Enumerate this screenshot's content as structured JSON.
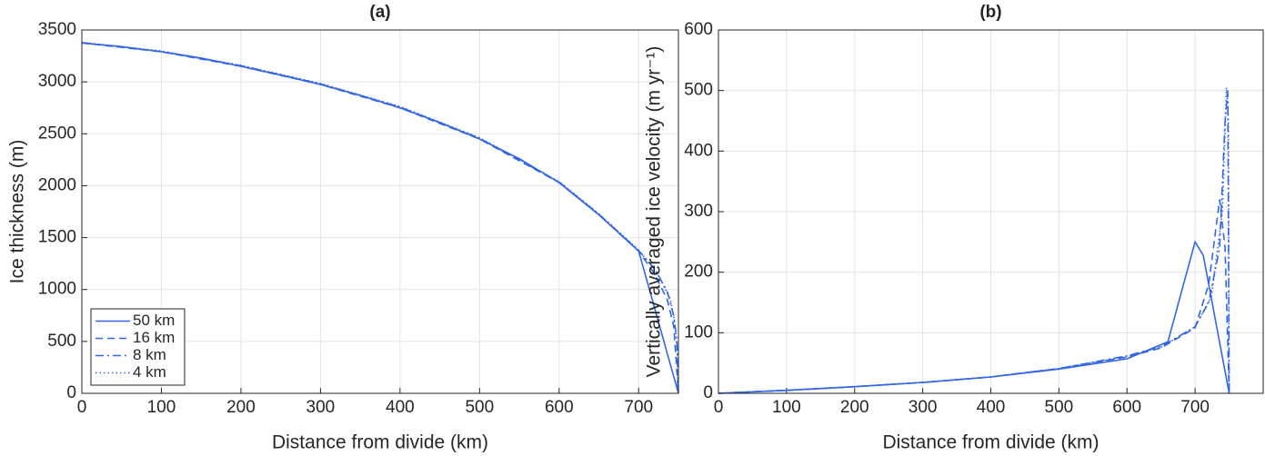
{
  "chart_data": [
    {
      "type": "line",
      "title": "(a)",
      "xlabel": "Distance from divide (km)",
      "ylabel": "Ice thickness (m)",
      "xlim": [
        0,
        750
      ],
      "xticks": [
        0,
        100,
        200,
        300,
        400,
        500,
        600,
        700
      ],
      "ylim": [
        0,
        3500
      ],
      "yticks": [
        0,
        500,
        1000,
        1500,
        2000,
        2500,
        3000,
        3500
      ],
      "grid": true,
      "legend": "lower left",
      "series": [
        {
          "name": "50 km",
          "color": "#3366e6",
          "style": "solid",
          "x": [
            0,
            50,
            100,
            150,
            200,
            250,
            300,
            350,
            400,
            450,
            500,
            550,
            600,
            650,
            700,
            750
          ],
          "values": [
            3375,
            3340,
            3290,
            3230,
            3150,
            3065,
            2975,
            2870,
            2750,
            2610,
            2450,
            2260,
            2030,
            1720,
            1370,
            0
          ]
        },
        {
          "name": "16 km",
          "color": "#3366e6",
          "style": "dashed",
          "x": [
            0,
            100,
            200,
            300,
            400,
            500,
            600,
            650,
            700,
            720,
            736,
            744,
            750
          ],
          "values": [
            3375,
            3290,
            3150,
            2975,
            2750,
            2450,
            2030,
            1720,
            1370,
            1150,
            900,
            650,
            0
          ]
        },
        {
          "name": "8 km",
          "color": "#3366e6",
          "style": "dashdot",
          "x": [
            0,
            100,
            200,
            300,
            400,
            500,
            600,
            650,
            700,
            720,
            736,
            744,
            748,
            750
          ],
          "values": [
            3378,
            3293,
            3155,
            2980,
            2757,
            2457,
            2035,
            1725,
            1375,
            1200,
            980,
            750,
            500,
            0
          ]
        },
        {
          "name": "4 km",
          "color": "#3366e6",
          "style": "dotted",
          "x": [
            0,
            100,
            200,
            300,
            400,
            500,
            600,
            650,
            700,
            724,
            740,
            746,
            749,
            750
          ],
          "values": [
            3380,
            3297,
            3160,
            2985,
            2762,
            2462,
            2040,
            1730,
            1380,
            1150,
            900,
            650,
            350,
            0
          ]
        }
      ]
    },
    {
      "type": "line",
      "title": "(b)",
      "xlabel": "Distance from divide (km)",
      "ylabel": "Vertically averaged ice velocity (m yr⁻¹)",
      "xlim": [
        0,
        800
      ],
      "xticks": [
        0,
        100,
        200,
        300,
        400,
        500,
        600,
        700
      ],
      "ylim": [
        0,
        600
      ],
      "yticks": [
        0,
        100,
        200,
        300,
        400,
        500,
        600
      ],
      "grid": true,
      "series": [
        {
          "name": "50 km",
          "color": "#3366e6",
          "style": "solid",
          "x": [
            0,
            100,
            200,
            300,
            400,
            500,
            600,
            660,
            700,
            712,
            750
          ],
          "values": [
            0,
            5,
            11,
            18,
            27,
            40,
            57,
            85,
            250,
            228,
            0
          ]
        },
        {
          "name": "16 km",
          "color": "#3366e6",
          "style": "dashed",
          "x": [
            0,
            100,
            200,
            300,
            400,
            500,
            600,
            650,
            700,
            720,
            736,
            744,
            750
          ],
          "values": [
            0,
            5,
            11,
            18,
            27,
            41,
            60,
            75,
            108,
            180,
            320,
            240,
            0
          ]
        },
        {
          "name": "8 km",
          "color": "#3366e6",
          "style": "dashdot",
          "x": [
            0,
            100,
            200,
            300,
            400,
            500,
            600,
            650,
            700,
            720,
            736,
            744,
            748,
            750
          ],
          "values": [
            0,
            5,
            11,
            18,
            27,
            41,
            62,
            77,
            110,
            150,
            240,
            450,
            500,
            0
          ]
        },
        {
          "name": "4 km",
          "color": "#3366e6",
          "style": "dotted",
          "x": [
            0,
            100,
            200,
            300,
            400,
            500,
            600,
            650,
            700,
            724,
            740,
            746,
            749,
            750
          ],
          "values": [
            0,
            5,
            11,
            18,
            27,
            41,
            61,
            76,
            110,
            160,
            300,
            505,
            450,
            0
          ]
        }
      ]
    }
  ]
}
